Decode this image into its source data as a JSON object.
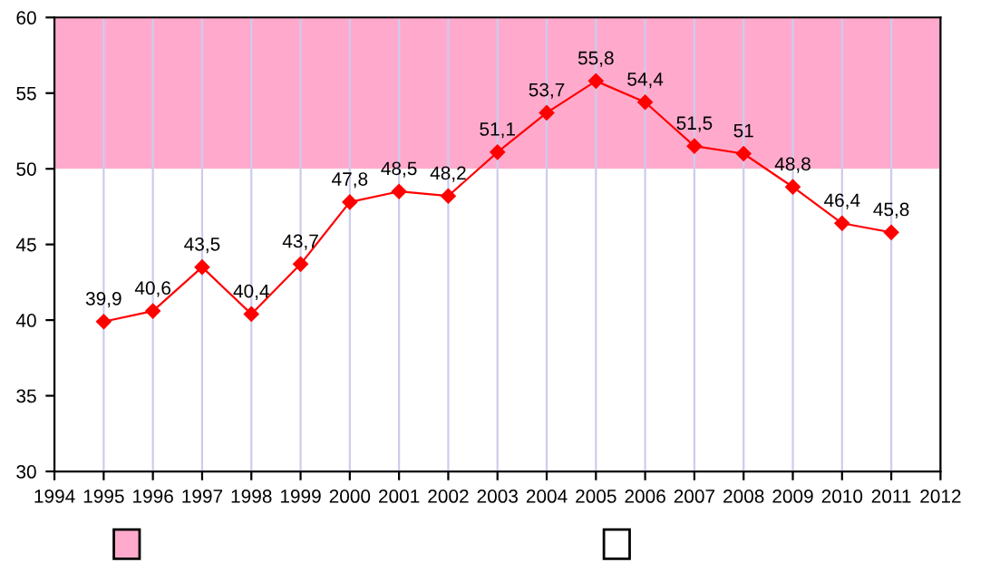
{
  "chart_data": {
    "type": "line",
    "x": [
      1995,
      1996,
      1997,
      1998,
      1999,
      2000,
      2001,
      2002,
      2003,
      2004,
      2005,
      2006,
      2007,
      2008,
      2009,
      2010,
      2011
    ],
    "series": [
      {
        "color": "#ff0000",
        "values": [
          39.9,
          40.6,
          43.5,
          40.4,
          43.7,
          47.8,
          48.5,
          48.2,
          51.1,
          53.7,
          55.8,
          54.4,
          51.5,
          51,
          48.8,
          46.4,
          45.8
        ],
        "value_labels": [
          "39,9",
          "40,6",
          "43,5",
          "40,4",
          "43,7",
          "47,8",
          "48,5",
          "48,2",
          "51,1",
          "53,7",
          "55,8",
          "54,4",
          "51,5",
          "51",
          "48,8",
          "46,4",
          "45,8"
        ]
      }
    ],
    "xlim": [
      1994,
      2012
    ],
    "xticks": [
      1994,
      1995,
      1996,
      1997,
      1998,
      1999,
      2000,
      2001,
      2002,
      2003,
      2004,
      2005,
      2006,
      2007,
      2008,
      2009,
      2010,
      2011,
      2012
    ],
    "ylim": [
      30,
      60
    ],
    "yticks": [
      30,
      35,
      40,
      45,
      50,
      55,
      60
    ],
    "bands": [
      {
        "axis": "y",
        "from": 50,
        "to": 60,
        "color": "#ffaacc"
      },
      {
        "axis": "y",
        "from": 30,
        "to": 50,
        "color": "#ffffff"
      }
    ],
    "grid": "x",
    "marker": "diamond",
    "line_style": "solid"
  }
}
